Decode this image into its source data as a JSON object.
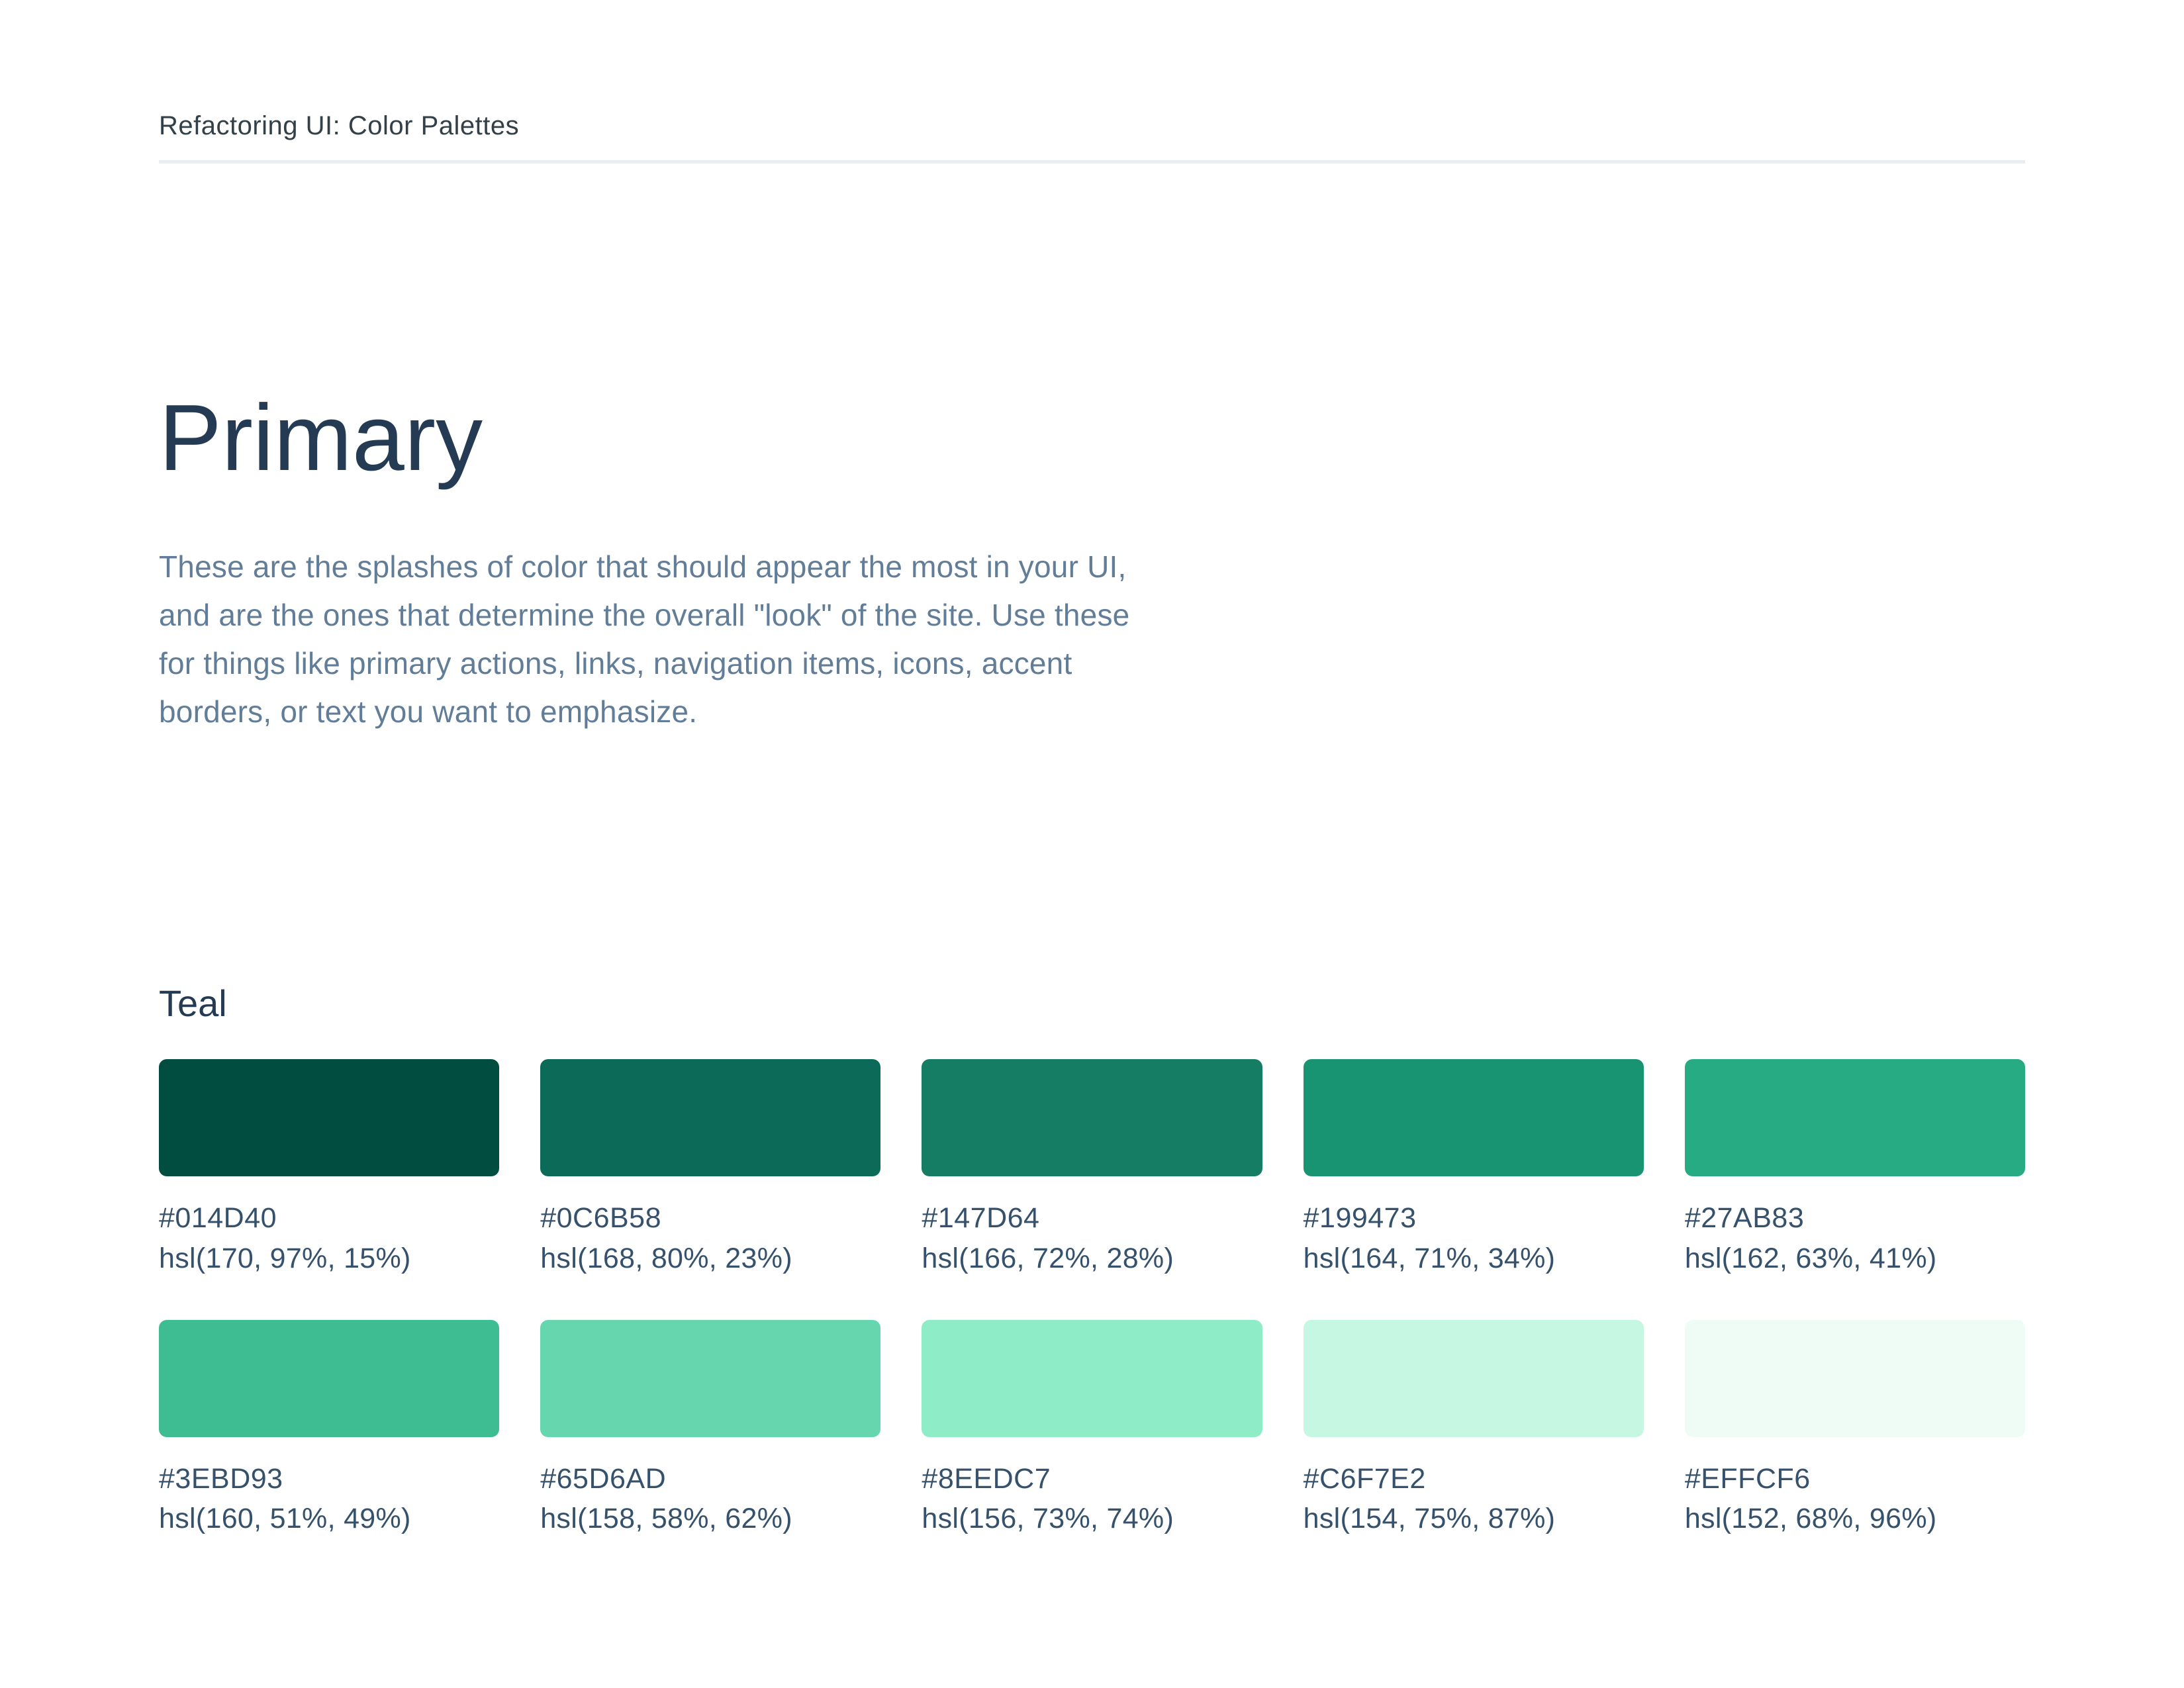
{
  "header": {
    "title": "Refactoring UI: Color Palettes"
  },
  "section": {
    "title": "Primary",
    "description_lines": [
      "These are the splashes of color that should appear the most in your UI,",
      "and are the ones that determine the overall \"look\" of the site. Use these",
      "for things like primary actions, links, navigation items, icons, accent",
      "borders, or text you want to emphasize."
    ]
  },
  "palette": {
    "name": "Teal",
    "swatches": [
      {
        "hex": "#014D40",
        "hsl": "hsl(170, 97%, 15%)"
      },
      {
        "hex": "#0C6B58",
        "hsl": "hsl(168, 80%, 23%)"
      },
      {
        "hex": "#147D64",
        "hsl": "hsl(166, 72%, 28%)"
      },
      {
        "hex": "#199473",
        "hsl": "hsl(164, 71%, 34%)"
      },
      {
        "hex": "#27AB83",
        "hsl": "hsl(162, 63%, 41%)"
      },
      {
        "hex": "#3EBD93",
        "hsl": "hsl(160, 51%, 49%)"
      },
      {
        "hex": "#65D6AD",
        "hsl": "hsl(158, 58%, 62%)"
      },
      {
        "hex": "#8EEDC7",
        "hsl": "hsl(156, 73%, 74%)"
      },
      {
        "hex": "#C6F7E2",
        "hsl": "hsl(154, 75%, 87%)"
      },
      {
        "hex": "#EFFCF6",
        "hsl": "hsl(152, 68%, 96%)"
      }
    ]
  },
  "colors": {
    "background": "#FFFFFF",
    "header_text": "#334047",
    "heading_text": "#243B53",
    "body_text": "#627D98",
    "label_text": "#35516C",
    "divider": "#E9ECF0"
  }
}
